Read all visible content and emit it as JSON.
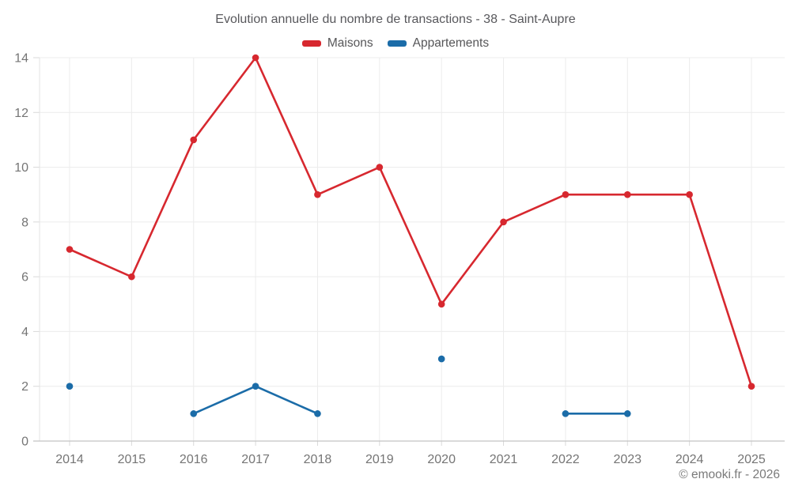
{
  "title": "Evolution annuelle du nombre de transactions - 38 - Saint-Aupre",
  "footer": "© emooki.fr - 2026",
  "chart_data": {
    "type": "line",
    "title": "Evolution annuelle du nombre de transactions - 38 - Saint-Aupre",
    "x": [
      "2014",
      "2015",
      "2016",
      "2017",
      "2018",
      "2019",
      "2020",
      "2021",
      "2022",
      "2023",
      "2024",
      "2025"
    ],
    "series": [
      {
        "name": "Maisons",
        "color": "#d7282f",
        "values": [
          7,
          6,
          11,
          14,
          9,
          10,
          5,
          8,
          9,
          9,
          9,
          2
        ]
      },
      {
        "name": "Appartements",
        "color": "#1b6ca8",
        "values": [
          2,
          null,
          1,
          2,
          1,
          null,
          3,
          null,
          1,
          1,
          null,
          null
        ]
      }
    ],
    "xlabel": "",
    "ylabel": "",
    "ylim": [
      0,
      14
    ],
    "yticks": [
      0,
      2,
      4,
      6,
      8,
      10,
      12,
      14
    ],
    "grid": true,
    "legend_position": "top"
  }
}
